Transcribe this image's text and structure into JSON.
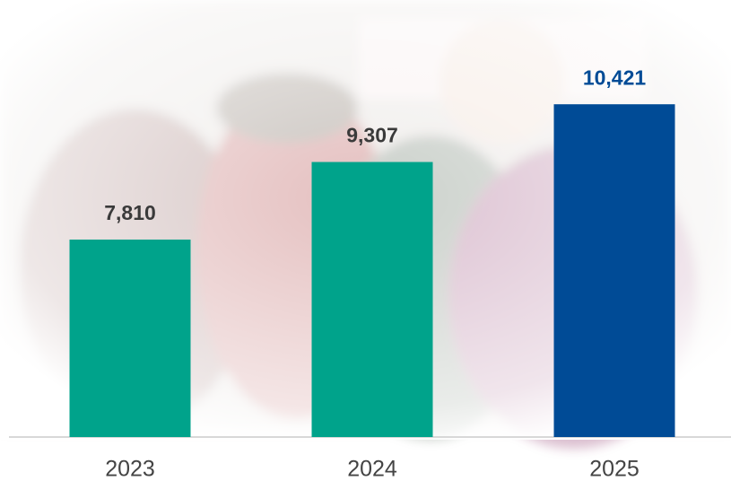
{
  "chart_data": {
    "type": "bar",
    "categories": [
      "2023",
      "2024",
      "2025"
    ],
    "values": [
      7810,
      9307,
      10421
    ],
    "value_labels": [
      "7,810",
      "9,307",
      "10,421"
    ],
    "colors": [
      "#00a38b",
      "#00a38b",
      "#004b96"
    ],
    "value_label_colors": [
      "#3a3a3a",
      "#3a3a3a",
      "#004b96"
    ],
    "ylim": [
      4000,
      12000
    ]
  }
}
